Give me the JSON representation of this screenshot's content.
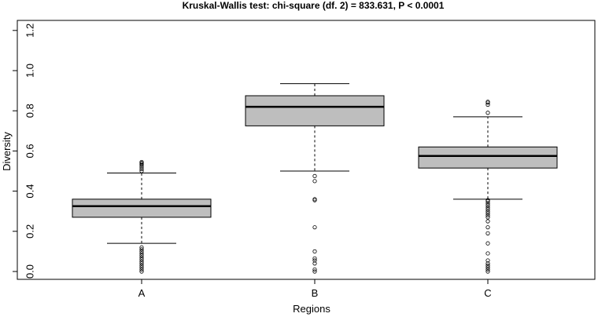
{
  "chart_data": {
    "type": "boxplot",
    "title": "Kruskal-Wallis test: chi-square (df. 2) = 833.631, P < 0.0001",
    "xlabel": "Regions",
    "ylabel": "Diversity",
    "ylim": [
      -0.03,
      1.22
    ],
    "yticks": [
      "0.0",
      "0.2",
      "0.4",
      "0.6",
      "0.8",
      "1.0",
      "1.2"
    ],
    "categories": [
      "A",
      "B",
      "C"
    ],
    "box_color": "#bebebe",
    "grid": false,
    "boxes": [
      {
        "category": "A",
        "whisker_low": 0.14,
        "q1": 0.27,
        "median": 0.325,
        "q3": 0.36,
        "whisker_high": 0.49,
        "outliers": [
          0.0,
          0.01,
          0.02,
          0.03,
          0.04,
          0.05,
          0.06,
          0.07,
          0.08,
          0.09,
          0.1,
          0.11,
          0.12,
          0.5,
          0.51,
          0.52,
          0.53,
          0.535,
          0.54,
          0.545
        ]
      },
      {
        "category": "B",
        "whisker_low": 0.5,
        "q1": 0.725,
        "median": 0.82,
        "q3": 0.875,
        "whisker_high": 0.935,
        "outliers": [
          0.0,
          0.01,
          0.04,
          0.055,
          0.065,
          0.1,
          0.22,
          0.355,
          0.36,
          0.45,
          0.475
        ]
      },
      {
        "category": "C",
        "whisker_low": 0.36,
        "q1": 0.515,
        "median": 0.575,
        "q3": 0.62,
        "whisker_high": 0.77,
        "outliers": [
          0.0,
          0.01,
          0.02,
          0.03,
          0.04,
          0.055,
          0.09,
          0.14,
          0.19,
          0.22,
          0.25,
          0.27,
          0.28,
          0.29,
          0.3,
          0.31,
          0.32,
          0.33,
          0.34,
          0.35,
          0.355,
          0.79,
          0.83,
          0.84,
          0.845
        ]
      }
    ]
  }
}
